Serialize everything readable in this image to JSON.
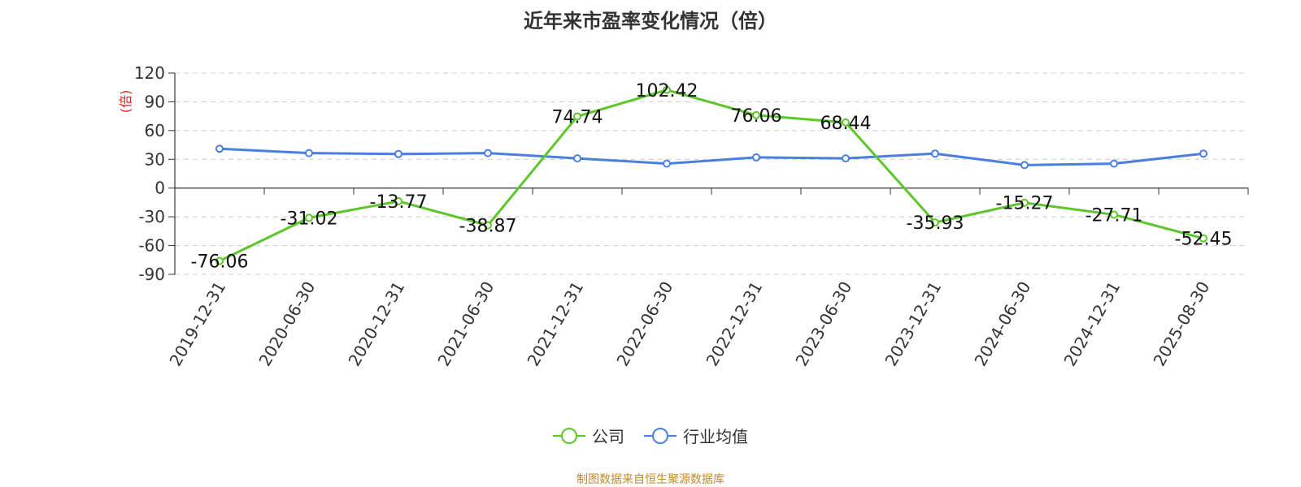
{
  "chart_data": {
    "type": "line",
    "title": "近年来市盈率变化情况（倍）",
    "ylabel": "(倍)",
    "ylim": [
      -90,
      120
    ],
    "yticks": [
      120,
      90,
      60,
      30,
      0,
      -30,
      -60,
      -90
    ],
    "grid": true,
    "legend_position": "bottom-center",
    "categories": [
      "2019-12-31",
      "2020-06-30",
      "2020-12-31",
      "2021-06-30",
      "2021-12-31",
      "2022-06-30",
      "2022-12-31",
      "2023-06-30",
      "2023-12-31",
      "2024-06-30",
      "2024-12-31",
      "2025-08-30"
    ],
    "series": [
      {
        "name": "公司",
        "color": "#5cc62a",
        "values": [
          -76.06,
          -31.02,
          -13.77,
          -38.87,
          74.74,
          102.42,
          76.06,
          68.44,
          -35.93,
          -15.27,
          -27.71,
          -52.45
        ],
        "labels": [
          "-76.06",
          "-31.02",
          "-13.77",
          "-38.87",
          "74.74",
          "102.42",
          "76.06",
          "68.44",
          "-35.93",
          "-15.27",
          "-27.71",
          "-52.45"
        ]
      },
      {
        "name": "行业均值",
        "color": "#4a7ee0",
        "values": [
          41,
          36.5,
          35.5,
          36.5,
          31,
          25.5,
          32,
          31,
          36,
          24,
          25.5,
          36
        ]
      }
    ]
  },
  "source": "制图数据来自恒生聚源数据库",
  "colors": {
    "axis": "#333333",
    "grid": "#cccccc",
    "ylabel": "#e02020",
    "source": "#c08a2b"
  }
}
